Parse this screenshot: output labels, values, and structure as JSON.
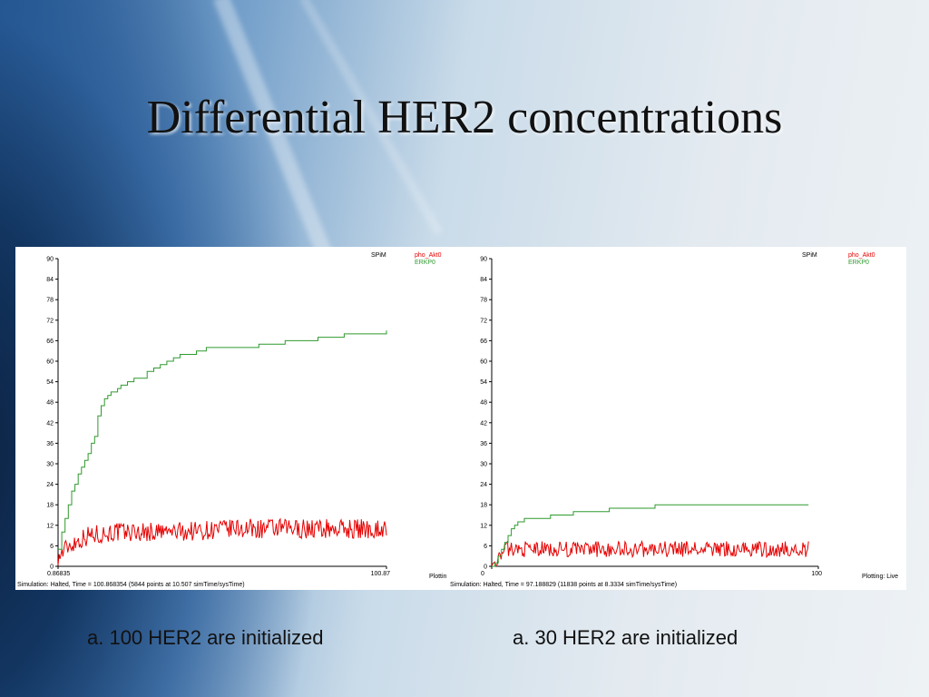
{
  "slide": {
    "title": "Differential HER2 concentrations",
    "captions": [
      "a. 100 HER2 are initialized",
      "a. 30 HER2 are initialized"
    ]
  },
  "colors": {
    "ERKP0": "#2f9a2f",
    "pho_Akt0": "#e60000",
    "axis": "#000000"
  },
  "chart_data": [
    {
      "type": "line",
      "brand": "SPiM",
      "xlim": [
        0.86835,
        100.87
      ],
      "x_tick_labels": [
        "0.86835",
        "100.87"
      ],
      "ylim": [
        0,
        90
      ],
      "y_ticks": [
        0,
        6,
        12,
        18,
        24,
        30,
        36,
        42,
        48,
        54,
        60,
        66,
        72,
        78,
        84,
        90
      ],
      "status": "Simulation: Halted, Time = 100.868354 (5844 points at 10.507 simTime/sysTime)",
      "plotting": "Plottin",
      "series": [
        {
          "name": "pho_Akt0",
          "noise": 1.6,
          "x": [
            0.87,
            2,
            4,
            6,
            8,
            10,
            14,
            18,
            25,
            35,
            45,
            55,
            65,
            75,
            85,
            95,
            100.87
          ],
          "y": [
            2,
            4,
            6,
            7,
            8,
            9,
            9.5,
            10,
            10,
            10,
            10.5,
            11,
            11,
            11,
            11,
            11,
            11
          ]
        },
        {
          "name": "ERKP0",
          "x": [
            0.87,
            2,
            3,
            4,
            5,
            6,
            7,
            8,
            9,
            10,
            11,
            12,
            13,
            14,
            15,
            16,
            17,
            18,
            19,
            20,
            22,
            24,
            26,
            28,
            30,
            32,
            34,
            36,
            38,
            40,
            43,
            46,
            50,
            56,
            62,
            70,
            80,
            88,
            95,
            100.87
          ],
          "y": [
            5,
            10,
            14,
            18,
            22,
            24,
            27,
            29,
            31,
            33,
            36,
            38,
            44,
            47,
            49,
            50,
            51,
            51,
            52,
            53,
            54,
            55,
            55,
            57,
            58,
            59,
            60,
            61,
            62,
            62,
            63,
            64,
            64,
            64,
            65,
            66,
            67,
            68,
            68,
            69
          ]
        }
      ]
    },
    {
      "type": "line",
      "brand": "SPiM",
      "xlim": [
        0,
        100
      ],
      "x_tick_labels": [
        "0",
        "100"
      ],
      "ylim": [
        0,
        90
      ],
      "y_ticks": [
        0,
        6,
        12,
        18,
        24,
        30,
        36,
        42,
        48,
        54,
        60,
        66,
        72,
        78,
        84,
        90
      ],
      "status": "Simulation: Halted, Time = 97.188829 (11838 points at 8.3334 simTime/sysTime)",
      "plotting": "Plotting: Live",
      "series": [
        {
          "name": "pho_Akt0",
          "noise": 1.3,
          "x": [
            0,
            1,
            2,
            3,
            4,
            6,
            10,
            20,
            40,
            60,
            80,
            97
          ],
          "y": [
            0,
            1,
            2,
            4,
            5,
            5,
            5,
            5,
            5,
            5,
            5,
            5
          ]
        },
        {
          "name": "ERKP0",
          "x": [
            0,
            1,
            2,
            3,
            4,
            5,
            6,
            7,
            8,
            9,
            10,
            12,
            15,
            18,
            20,
            22,
            25,
            30,
            36,
            42,
            50,
            60,
            70,
            80,
            90,
            97
          ],
          "y": [
            0,
            1,
            3,
            5,
            7,
            9,
            11,
            12,
            13,
            13,
            14,
            14,
            14,
            15,
            15,
            15,
            16,
            16,
            17,
            17,
            18,
            18,
            18,
            18,
            18,
            18
          ]
        }
      ]
    }
  ]
}
